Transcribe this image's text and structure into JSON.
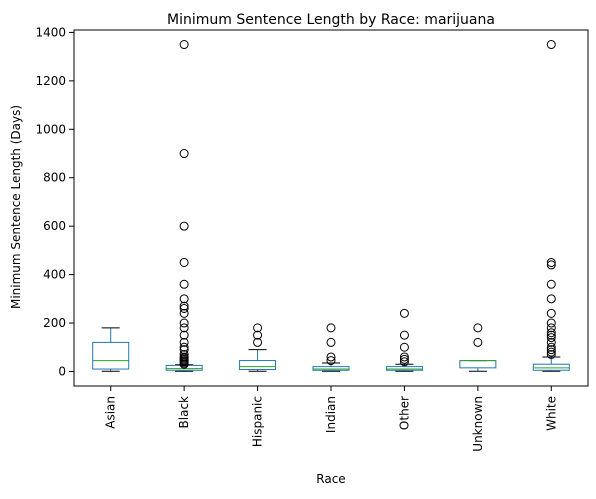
{
  "chart_data": {
    "type": "box",
    "title": "Minimum Sentence Length by Race: marijuana",
    "xlabel": "Race",
    "ylabel": "Minimum Sentence Length (Days)",
    "ylim": [
      -60,
      1410
    ],
    "yticks": [
      0,
      200,
      400,
      600,
      800,
      1000,
      1200,
      1400
    ],
    "grid": false,
    "categories": [
      "Asian",
      "Black",
      "Hispanic",
      "Indian",
      "Other",
      "Unknown",
      "White"
    ],
    "boxes": [
      {
        "category": "Asian",
        "whisker_low": 1,
        "q1": 10,
        "median": 45,
        "q3": 120,
        "whisker_high": 180,
        "outliers": []
      },
      {
        "category": "Black",
        "whisker_low": 1,
        "q1": 5,
        "median": 12,
        "q3": 25,
        "whisker_high": 28,
        "outliers": [
          30,
          35,
          40,
          45,
          50,
          55,
          60,
          70,
          90,
          100,
          120,
          150,
          180,
          200,
          240,
          260,
          270,
          300,
          360,
          450,
          600,
          900,
          1350
        ]
      },
      {
        "category": "Hispanic",
        "whisker_low": 1,
        "q1": 8,
        "median": 20,
        "q3": 45,
        "whisker_high": 90,
        "outliers": [
          120,
          150,
          180
        ]
      },
      {
        "category": "Indian",
        "whisker_low": 1,
        "q1": 5,
        "median": 10,
        "q3": 20,
        "whisker_high": 35,
        "outliers": [
          45,
          60,
          120,
          180
        ]
      },
      {
        "category": "Other",
        "whisker_low": 1,
        "q1": 5,
        "median": 10,
        "q3": 20,
        "whisker_high": 30,
        "outliers": [
          40,
          50,
          60,
          100,
          150,
          240
        ]
      },
      {
        "category": "Unknown",
        "whisker_low": 1,
        "q1": 15,
        "median": 45,
        "q3": 45,
        "whisker_high": 45,
        "outliers": [
          120,
          180
        ]
      },
      {
        "category": "White",
        "whisker_low": 1,
        "q1": 5,
        "median": 15,
        "q3": 30,
        "whisker_high": 60,
        "outliers": [
          70,
          80,
          90,
          100,
          120,
          140,
          150,
          160,
          180,
          200,
          240,
          300,
          360,
          440,
          450,
          1350
        ]
      }
    ],
    "colors": {
      "box": "#1f77b4",
      "median": "#2ca02c",
      "whisker": "#1f77b4",
      "cap": "#000000",
      "outlier": "#000000"
    }
  }
}
